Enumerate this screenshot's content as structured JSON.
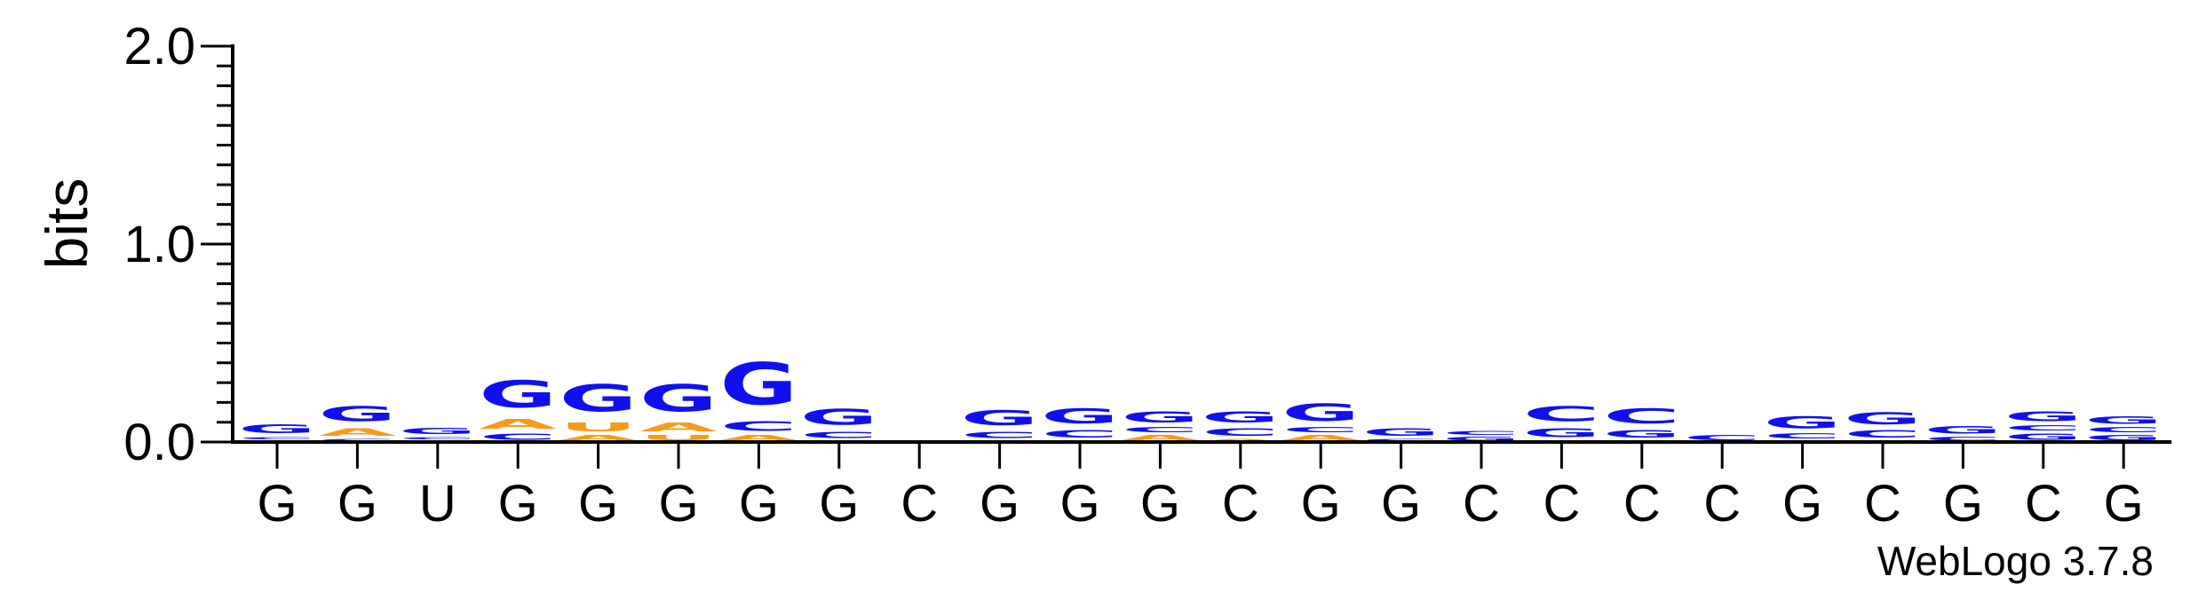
{
  "chart_data": {
    "type": "sequence-logo",
    "ylabel": "bits",
    "ylim": [
      0,
      2.0
    ],
    "yticks": [
      "0.0",
      "1.0",
      "2.0"
    ],
    "x": [
      "G",
      "G",
      "U",
      "G",
      "G",
      "G",
      "G",
      "G",
      "C",
      "G",
      "G",
      "G",
      "C",
      "G",
      "G",
      "C",
      "C",
      "C",
      "C",
      "G",
      "C",
      "G",
      "C",
      "G"
    ],
    "colors": {
      "G": "#1010ee",
      "C": "#1010ee",
      "A": "#f79a18",
      "U": "#f79a18"
    },
    "stacks": [
      [
        [
          "A",
          0.01
        ],
        [
          "C",
          0.02
        ],
        [
          "G",
          0.07
        ]
      ],
      [
        [
          "C",
          0.02
        ],
        [
          "A",
          0.06
        ],
        [
          "G",
          0.12
        ]
      ],
      [
        [
          "A",
          0.01
        ],
        [
          "C",
          0.02
        ],
        [
          "G",
          0.05
        ]
      ],
      [
        [
          "C",
          0.05
        ],
        [
          "A",
          0.08
        ],
        [
          "G",
          0.22
        ]
      ],
      [
        [
          "A",
          0.04
        ],
        [
          "U",
          0.07
        ],
        [
          "G",
          0.22
        ]
      ],
      [
        [
          "U",
          0.04
        ],
        [
          "A",
          0.07
        ],
        [
          "G",
          0.22
        ]
      ],
      [
        [
          "A",
          0.04
        ],
        [
          "C",
          0.08
        ],
        [
          "G",
          0.34
        ]
      ],
      [
        [
          "A",
          0.01
        ],
        [
          "C",
          0.05
        ],
        [
          "G",
          0.13
        ]
      ],
      [],
      [
        [
          "A",
          0.01
        ],
        [
          "C",
          0.05
        ],
        [
          "G",
          0.12
        ]
      ],
      [
        [
          "A",
          0.01
        ],
        [
          "C",
          0.06
        ],
        [
          "G",
          0.12
        ]
      ],
      [
        [
          "A",
          0.04
        ],
        [
          "C",
          0.04
        ],
        [
          "G",
          0.09
        ]
      ],
      [
        [
          "A",
          0.02
        ],
        [
          "C",
          0.06
        ],
        [
          "G",
          0.09
        ]
      ],
      [
        [
          "A",
          0.04
        ],
        [
          "C",
          0.04
        ],
        [
          "G",
          0.14
        ]
      ],
      [
        [
          "C",
          0.02
        ],
        [
          "G",
          0.06
        ]
      ],
      [
        [
          "G",
          0.03
        ],
        [
          "C",
          0.03
        ]
      ],
      [
        [
          "A",
          0.01
        ],
        [
          "G",
          0.07
        ],
        [
          "C",
          0.12
        ]
      ],
      [
        [
          "A",
          0.01
        ],
        [
          "G",
          0.06
        ],
        [
          "C",
          0.12
        ]
      ],
      [
        [
          "C",
          0.04
        ]
      ],
      [
        [
          "A",
          0.01
        ],
        [
          "C",
          0.04
        ],
        [
          "G",
          0.1
        ]
      ],
      [
        [
          "A",
          0.01
        ],
        [
          "C",
          0.06
        ],
        [
          "G",
          0.1
        ]
      ],
      [
        [
          "C",
          0.03
        ],
        [
          "G",
          0.06
        ]
      ],
      [
        [
          "G",
          0.05
        ],
        [
          "C",
          0.04
        ],
        [
          "G",
          0.08
        ]
      ],
      [
        [
          "G",
          0.04
        ],
        [
          "C",
          0.04
        ],
        [
          "G",
          0.06
        ]
      ]
    ]
  },
  "credit": "WebLogo 3.7.8"
}
